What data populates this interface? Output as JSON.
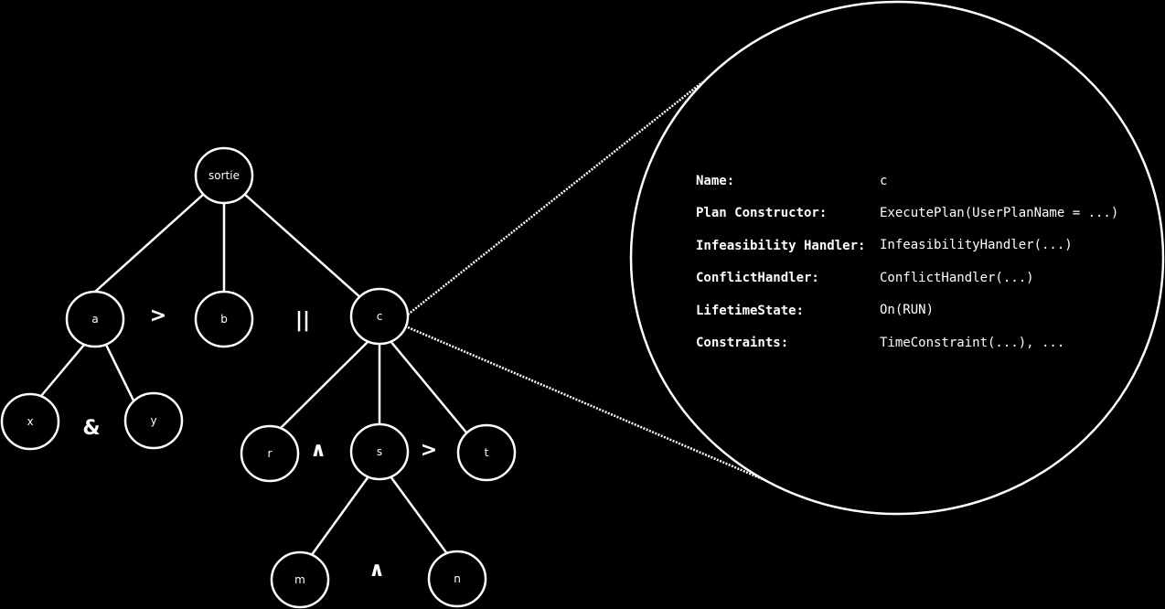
{
  "tree": {
    "nodes": {
      "sortie": "sortie",
      "a": "a",
      "b": "b",
      "c": "c",
      "x": "x",
      "y": "y",
      "r": "r",
      "s": "s",
      "t": "t",
      "m": "m",
      "n": "n"
    },
    "operators": {
      "a_b": ">",
      "b_c": "||",
      "x_y": "&",
      "r_s": "∧",
      "s_t": ">",
      "m_n": "∧"
    }
  },
  "details": {
    "rows": [
      {
        "key": "Name:",
        "value": "c"
      },
      {
        "key": "Plan Constructor:",
        "value": "ExecutePlan(UserPlanName = ...)"
      },
      {
        "key": "Infeasibility Handler:",
        "value": "InfeasibilityHandler(...)"
      },
      {
        "key": "ConflictHandler:",
        "value": "ConflictHandler(...)"
      },
      {
        "key": "LifetimeState:",
        "value": "On(RUN)"
      },
      {
        "key": "Constraints:",
        "value": "TimeConstraint(...), ..."
      }
    ]
  }
}
